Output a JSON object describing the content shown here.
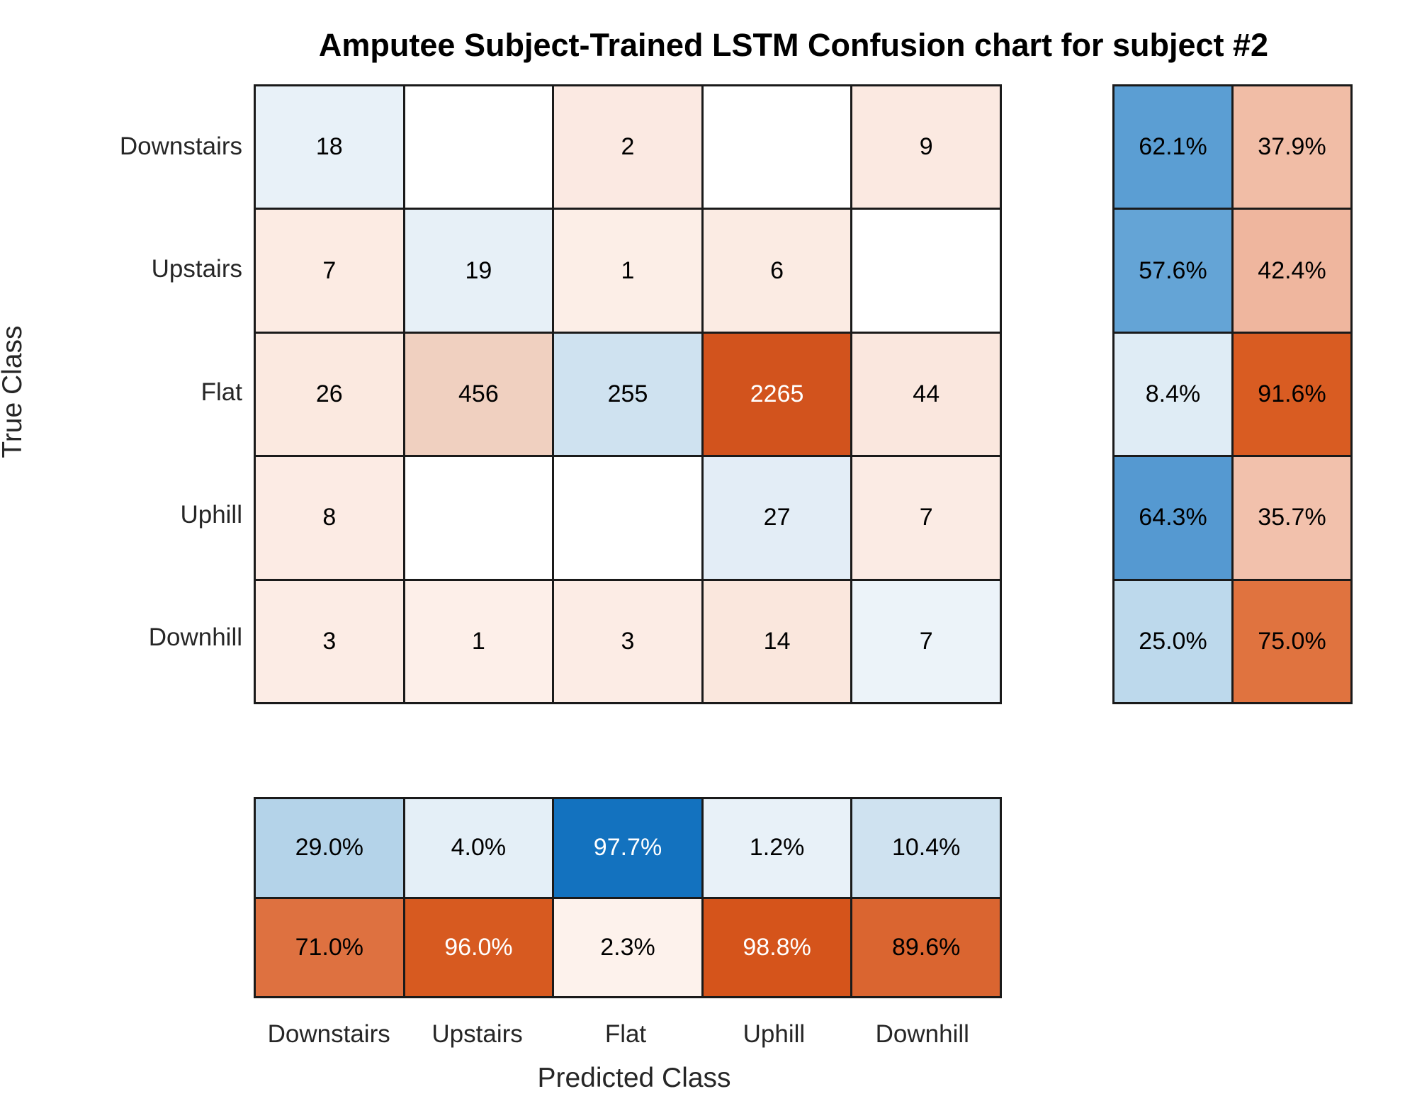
{
  "chart_data": {
    "type": "heatmap",
    "subtype": "confusion_matrix",
    "title": "Amputee Subject-Trained LSTM Confusion chart for subject #2",
    "xlabel": "Predicted Class",
    "ylabel": "True Class",
    "classes": [
      "Downstairs",
      "Upstairs",
      "Flat",
      "Uphill",
      "Downhill"
    ],
    "matrix": [
      [
        18,
        null,
        2,
        null,
        9
      ],
      [
        7,
        19,
        1,
        6,
        null
      ],
      [
        26,
        456,
        255,
        2265,
        44
      ],
      [
        8,
        null,
        null,
        27,
        7
      ],
      [
        3,
        1,
        3,
        14,
        7
      ]
    ],
    "row_summary_percent": [
      [
        "62.1%",
        "37.9%"
      ],
      [
        "57.6%",
        "42.4%"
      ],
      [
        "8.4%",
        "91.6%"
      ],
      [
        "64.3%",
        "35.7%"
      ],
      [
        "25.0%",
        "75.0%"
      ]
    ],
    "col_summary_percent": [
      [
        "29.0%",
        "4.0%",
        "97.7%",
        "1.2%",
        "10.4%"
      ],
      [
        "71.0%",
        "96.0%",
        "2.3%",
        "98.8%",
        "89.6%"
      ]
    ],
    "style": {
      "diagonal_color": "#0072bd",
      "off_diagonal_color": "#d95319",
      "grid_line_color": "#1a1a1a",
      "default_text_color": "#000000",
      "white_text_color": "#ffffff",
      "matrix_bg": [
        [
          "#e8f1f8",
          "#ffffff",
          "#fbe9e2",
          "#ffffff",
          "#fbe9e1"
        ],
        [
          "#fcebe3",
          "#e7f0f7",
          "#fceee7",
          "#fbebe3",
          "#ffffff"
        ],
        [
          "#fbe9e0",
          "#f0d0c0",
          "#cfe2f0",
          "#d2531d",
          "#fae7de"
        ],
        [
          "#fcebe4",
          "#ffffff",
          "#ffffff",
          "#e3edf6",
          "#fbebe4"
        ],
        [
          "#fcece5",
          "#fdefe9",
          "#fcece5",
          "#fae7dd",
          "#ecf3f9"
        ]
      ],
      "row_summary_bg": [
        [
          "#5b9ed3",
          "#f1bda6"
        ],
        [
          "#64a4d6",
          "#efb69e"
        ],
        [
          "#dfecf5",
          "#d95c22"
        ],
        [
          "#5599d1",
          "#f2c1ac"
        ],
        [
          "#bdd9ec",
          "#e0733f"
        ]
      ],
      "col_summary_bg": [
        [
          "#b4d3e9",
          "#e4eff7",
          "#1372bf",
          "#e8f1f8",
          "#cfe2f0"
        ],
        [
          "#de7140",
          "#d75a20",
          "#fdf2ec",
          "#d5541b",
          "#da6530"
        ]
      ],
      "matrix_white_text_cells": [
        [
          2,
          3
        ]
      ],
      "col_summary_white_text_cells": [
        [
          0,
          2
        ],
        [
          1,
          1
        ],
        [
          1,
          3
        ]
      ]
    }
  }
}
